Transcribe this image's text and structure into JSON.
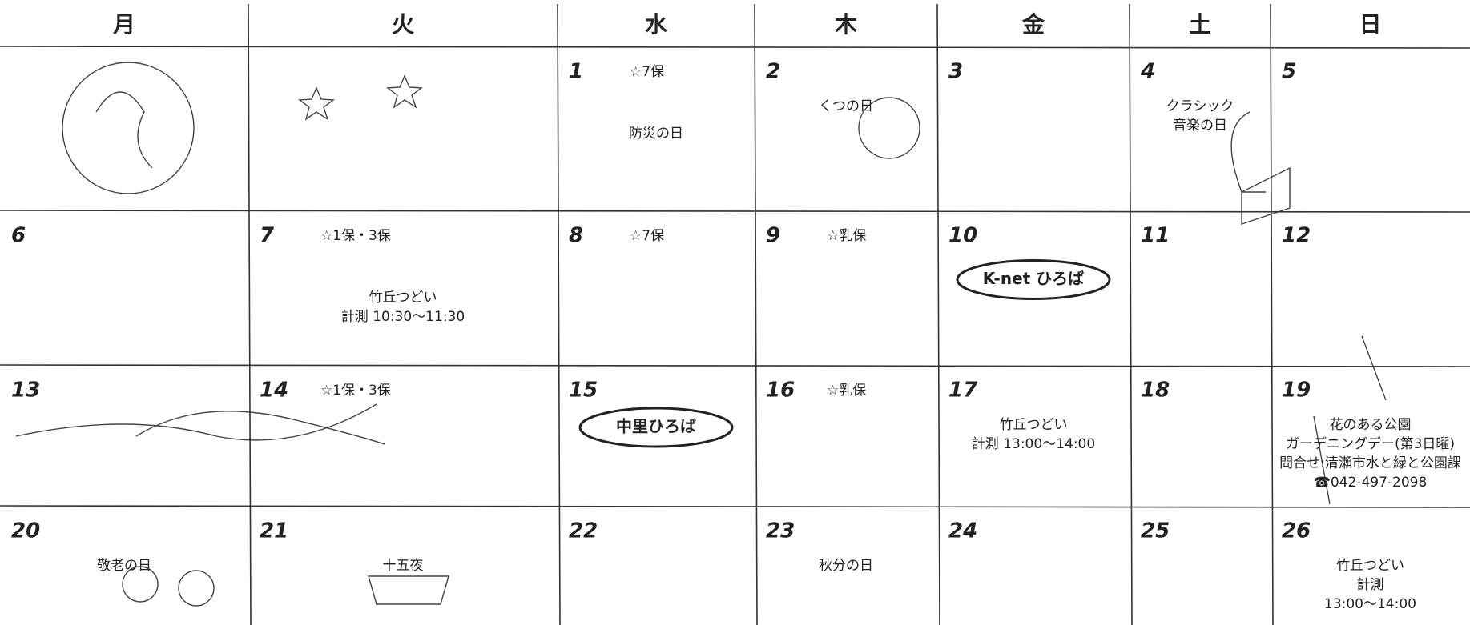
{
  "calendar": {
    "weekdays": [
      "月",
      "火",
      "水",
      "木",
      "金",
      "土",
      "日"
    ],
    "weeks": [
      [
        null,
        null,
        {
          "day": 1,
          "notes": [
            "☆7保",
            "防災の日"
          ]
        },
        {
          "day": 2,
          "notes": [
            "くつの日"
          ]
        },
        {
          "day": 3
        },
        {
          "day": 4,
          "notes": [
            "クラシック",
            "音楽の日"
          ]
        },
        {
          "day": 5
        }
      ],
      [
        {
          "day": 6
        },
        {
          "day": 7,
          "notes": [
            "☆1保・3保",
            "竹丘つどい",
            "計測 10:30〜11:30"
          ]
        },
        {
          "day": 8,
          "notes": [
            "☆7保"
          ]
        },
        {
          "day": 9,
          "notes": [
            "☆乳保"
          ]
        },
        {
          "day": 10,
          "badge": "K-net ひろば"
        },
        {
          "day": 11
        },
        {
          "day": 12
        }
      ],
      [
        {
          "day": 13
        },
        {
          "day": 14,
          "notes": [
            "☆1保・3保"
          ]
        },
        {
          "day": 15,
          "badge": "中里ひろば"
        },
        {
          "day": 16,
          "notes": [
            "☆乳保"
          ]
        },
        {
          "day": 17,
          "notes": [
            "竹丘つどい",
            "計測 13:00〜14:00"
          ]
        },
        {
          "day": 18
        },
        {
          "day": 19,
          "notes": [
            "花のある公園",
            "ガーデニングデー(第3日曜)",
            "問合せ:清瀬市水と緑と公園課",
            "☎042-497-2098"
          ]
        }
      ],
      [
        {
          "day": 20,
          "notes": [
            "敬老の日"
          ]
        },
        {
          "day": 21,
          "notes": [
            "十五夜"
          ]
        },
        {
          "day": 22
        },
        {
          "day": 23,
          "notes": [
            "秋分の日"
          ]
        },
        {
          "day": 24
        },
        {
          "day": 25
        },
        {
          "day": 26,
          "notes": [
            "竹丘つどい",
            "計測",
            "13:00〜14:00"
          ]
        }
      ]
    ]
  }
}
